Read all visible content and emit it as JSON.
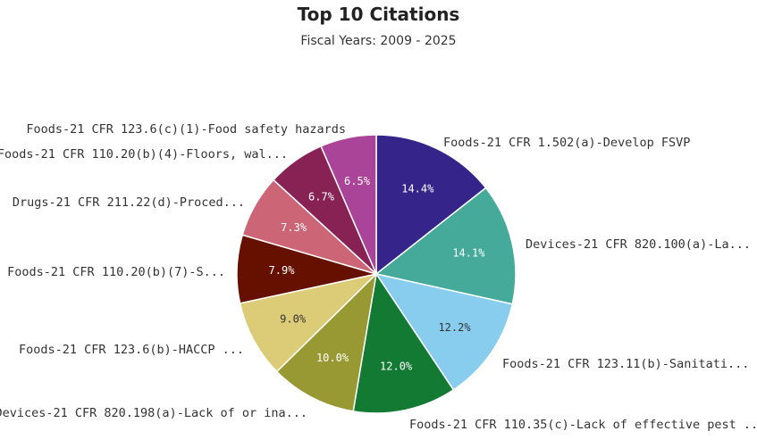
{
  "chart_data": {
    "type": "pie",
    "title": "Top 10 Citations",
    "subtitle": "Fiscal Years: 2009 - 2025",
    "slices": [
      {
        "label": "Foods-21 CFR 1.502(a)-Develop FSVP",
        "value": 14.4,
        "display": "14.4%",
        "color": "#35258a",
        "text_color": "#ffffff"
      },
      {
        "label": "Devices-21 CFR 820.100(a)-La...",
        "value": 14.1,
        "display": "14.1%",
        "color": "#45aa9a",
        "text_color": "#ffffff"
      },
      {
        "label": "Foods-21 CFR 123.11(b)-Sanitati...",
        "value": 12.2,
        "display": "12.2%",
        "color": "#88ccee",
        "text_color": "#333333"
      },
      {
        "label": "Foods-21 CFR 110.35(c)-Lack of effective pest ...",
        "value": 12.0,
        "display": "12.0%",
        "color": "#137a34",
        "text_color": "#ffffff"
      },
      {
        "label": "Devices-21 CFR 820.198(a)-Lack of or ina...",
        "value": 10.0,
        "display": "10.0%",
        "color": "#999933",
        "text_color": "#ffffff"
      },
      {
        "label": "Foods-21 CFR 123.6(b)-HACCP ...",
        "value": 9.0,
        "display": "9.0%",
        "color": "#ddcc77",
        "text_color": "#333333"
      },
      {
        "label": "Foods-21 CFR 110.20(b)(7)-S...",
        "value": 7.9,
        "display": "7.9%",
        "color": "#661100",
        "text_color": "#ffffff"
      },
      {
        "label": "Drugs-21 CFR 211.22(d)-Proced...",
        "value": 7.3,
        "display": "7.3%",
        "color": "#cc6677",
        "text_color": "#ffffff"
      },
      {
        "label": "Foods-21 CFR 110.20(b)(4)-Floors, wal...",
        "value": 6.7,
        "display": "6.7%",
        "color": "#882255",
        "text_color": "#ffffff"
      },
      {
        "label": "Foods-21 CFR 123.6(c)(1)-Food safety hazards",
        "value": 6.5,
        "display": "6.5%",
        "color": "#aa4499",
        "text_color": "#ffffff"
      }
    ]
  }
}
